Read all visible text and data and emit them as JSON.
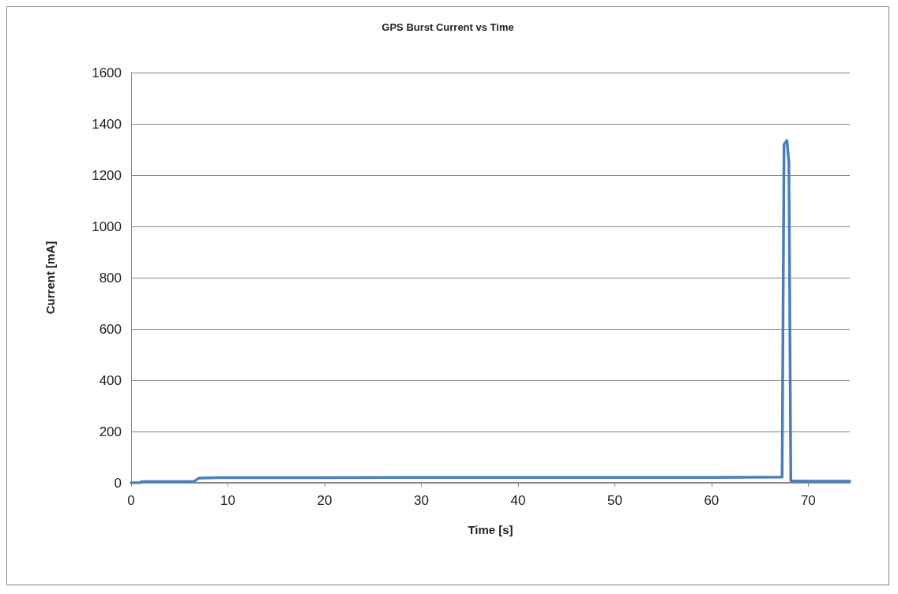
{
  "chart_data": {
    "type": "line",
    "title": "GPS Burst Current vs Time",
    "xlabel": "Time [s]",
    "ylabel": "Current [mA]",
    "x": [
      0,
      0.9,
      1.1,
      6.5,
      7,
      9,
      20,
      40,
      60,
      67.3,
      67.5,
      67.8,
      68.0,
      68.2,
      70,
      74.3
    ],
    "series": [
      {
        "color": "#4a7ebb",
        "values": [
          0,
          0,
          5,
          5,
          18,
          20,
          20,
          21,
          21,
          22,
          1320,
          1335,
          1250,
          8,
          6,
          6
        ]
      }
    ],
    "xlim": [
      0,
      74.3
    ],
    "xticks": [
      0,
      10,
      20,
      30,
      40,
      50,
      60,
      70
    ],
    "ylim": [
      0,
      1600
    ],
    "yticks": [
      0,
      200,
      400,
      600,
      800,
      1000,
      1200,
      1400,
      1600
    ],
    "grid": "y",
    "marker": "none",
    "line_style": "solid"
  }
}
